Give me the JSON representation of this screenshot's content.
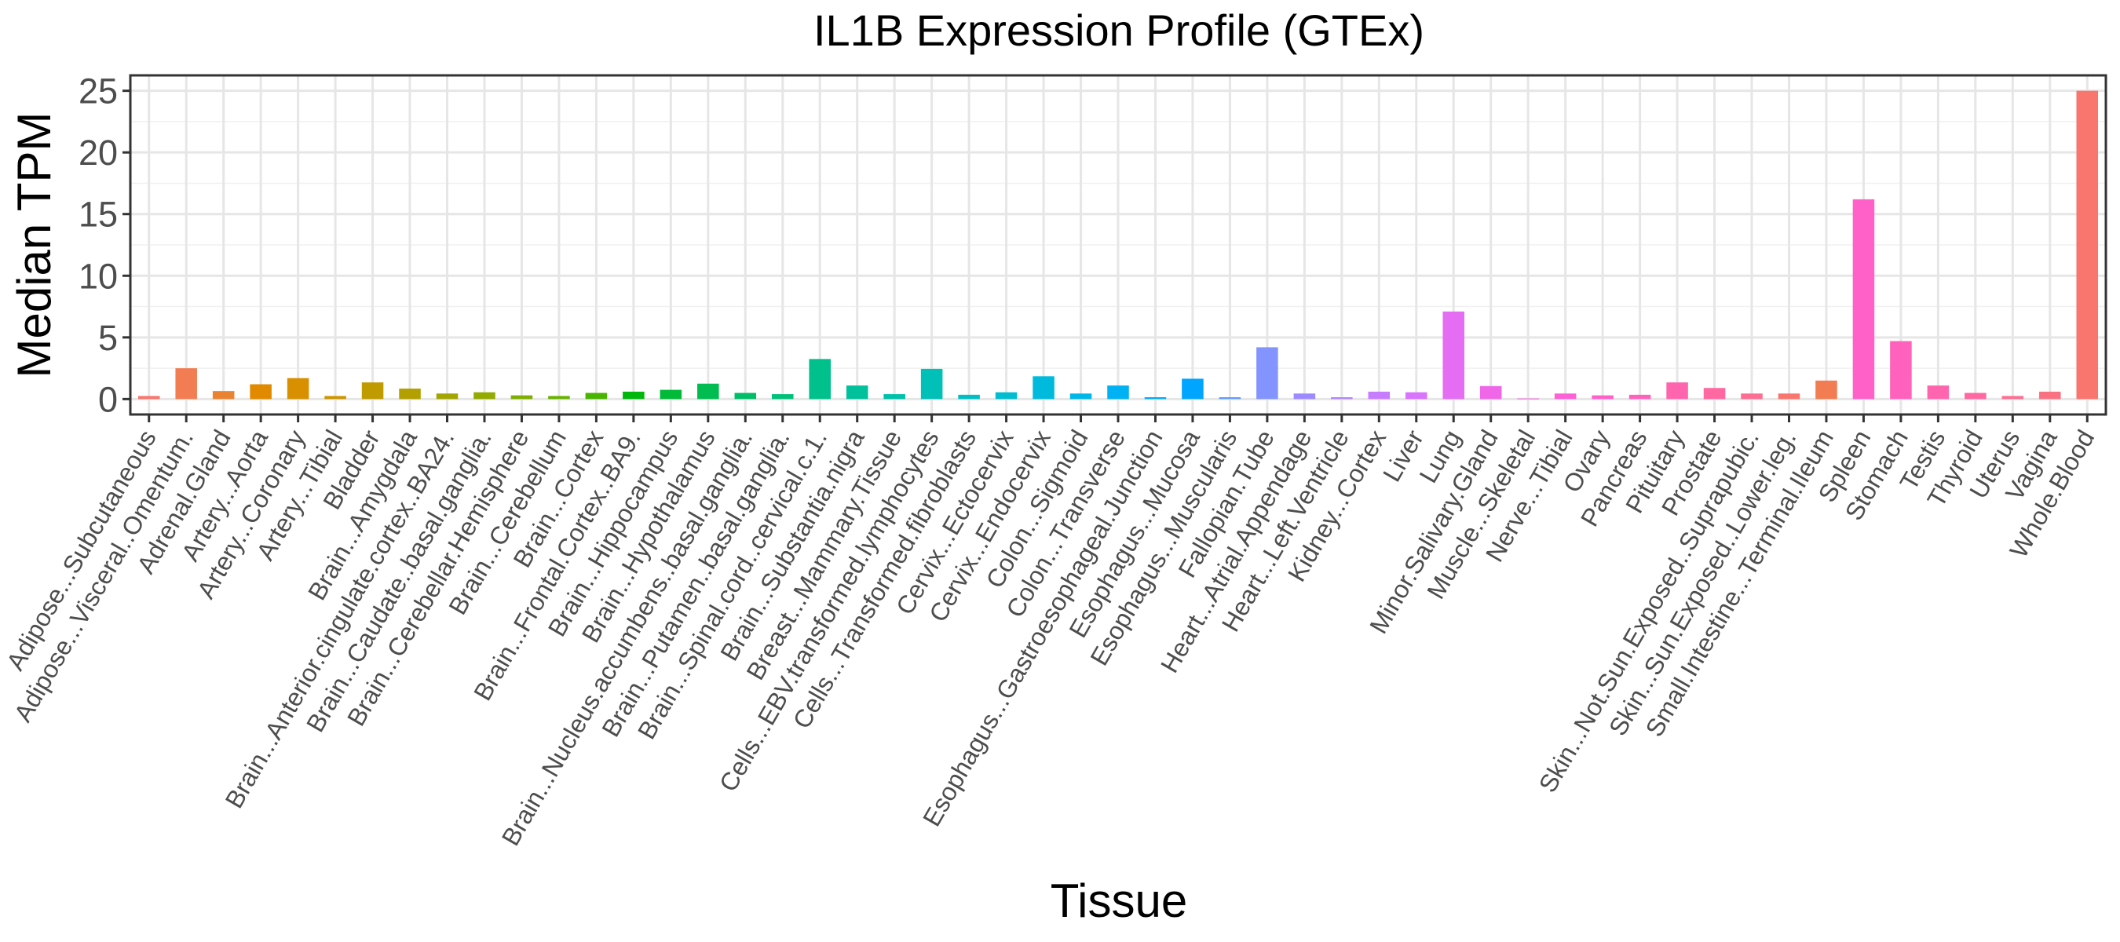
{
  "chart_data": {
    "type": "bar",
    "title": "IL1B Expression Profile (GTEx)",
    "xlabel": "Tissue",
    "ylabel": "Median TPM",
    "ylim": [
      -1.25,
      26.25
    ],
    "yticks": [
      0,
      5,
      10,
      15,
      20,
      25
    ],
    "grid": true,
    "legend": "none",
    "categories": [
      "Adipose...Subcutaneous",
      "Adipose...Visceral..Omentum.",
      "Adrenal.Gland",
      "Artery...Aorta",
      "Artery...Coronary",
      "Artery...Tibial",
      "Bladder",
      "Brain...Amygdala",
      "Brain...Anterior.cingulate.cortex..BA24.",
      "Brain...Caudate..basal.ganglia.",
      "Brain...Cerebellar.Hemisphere",
      "Brain...Cerebellum",
      "Brain...Cortex",
      "Brain...Frontal.Cortex..BA9.",
      "Brain...Hippocampus",
      "Brain...Hypothalamus",
      "Brain...Nucleus.accumbens..basal.ganglia.",
      "Brain...Putamen..basal.ganglia.",
      "Brain...Spinal.cord..cervical.c.1.",
      "Brain...Substantia.nigra",
      "Breast...Mammary.Tissue",
      "Cells...EBV.transformed.lymphocytes",
      "Cells...Transformed.fibroblasts",
      "Cervix...Ectocervix",
      "Cervix...Endocervix",
      "Colon...Sigmoid",
      "Colon...Transverse",
      "Esophagus...Gastroesophageal.Junction",
      "Esophagus...Mucosa",
      "Esophagus...Muscularis",
      "Fallopian.Tube",
      "Heart...Atrial.Appendage",
      "Heart...Left.Ventricle",
      "Kidney...Cortex",
      "Liver",
      "Lung",
      "Minor.Salivary.Gland",
      "Muscle...Skeletal",
      "Nerve...Tibial",
      "Ovary",
      "Pancreas",
      "Pituitary",
      "Prostate",
      "Skin...Not.Sun.Exposed..Suprapubic.",
      "Skin...Sun.Exposed..Lower.leg.",
      "Small.Intestine...Terminal.Ileum",
      "Spleen",
      "Stomach",
      "Testis",
      "Thyroid",
      "Uterus",
      "Vagina",
      "Whole.Blood"
    ],
    "values": [
      0.25,
      2.5,
      0.65,
      1.2,
      1.7,
      0.25,
      1.35,
      0.85,
      0.45,
      0.55,
      0.3,
      0.25,
      0.5,
      0.6,
      0.75,
      1.25,
      0.5,
      0.4,
      3.25,
      1.1,
      0.4,
      2.45,
      0.35,
      0.55,
      1.85,
      0.45,
      1.1,
      0.15,
      1.65,
      0.15,
      4.2,
      0.45,
      0.15,
      0.6,
      0.55,
      7.1,
      1.05,
      0.05,
      0.45,
      0.3,
      0.35,
      1.35,
      0.9,
      0.45,
      0.45,
      1.5,
      16.2,
      4.7,
      1.1,
      0.5,
      0.25,
      0.6,
      25.0
    ],
    "colors": [
      "#F8766D",
      "#F27D52",
      "#EA8331",
      "#E18A00",
      "#D89000",
      "#CD9600",
      "#C09B00",
      "#B3A000",
      "#A3A500",
      "#93AA00",
      "#7FAE00",
      "#68B200",
      "#49B500",
      "#00B70C",
      "#00BA38",
      "#00BC51",
      "#00BE67",
      "#00C07A",
      "#00C08B",
      "#00C19C",
      "#00C1AA",
      "#00C0B8",
      "#00BFC4",
      "#00BDD1",
      "#00BADE",
      "#00B7E9",
      "#00B2F3",
      "#00ACFC",
      "#00A5FF",
      "#619CFF",
      "#8494FF",
      "#9E8AFF",
      "#B385FF",
      "#C77CFF",
      "#D874FD",
      "#E56DF3",
      "#F066E9",
      "#F663E0",
      "#FC61D5",
      "#FF61C8",
      "#FF62BC",
      "#FF65AE",
      "#FF68A1",
      "#FC6E94",
      "#F8766D",
      "#F27D52",
      "#FF61C8",
      "#FF62BC",
      "#FF65AE",
      "#FF68A1",
      "#FC6E94",
      "#FA7282",
      "#F8766D"
    ]
  }
}
